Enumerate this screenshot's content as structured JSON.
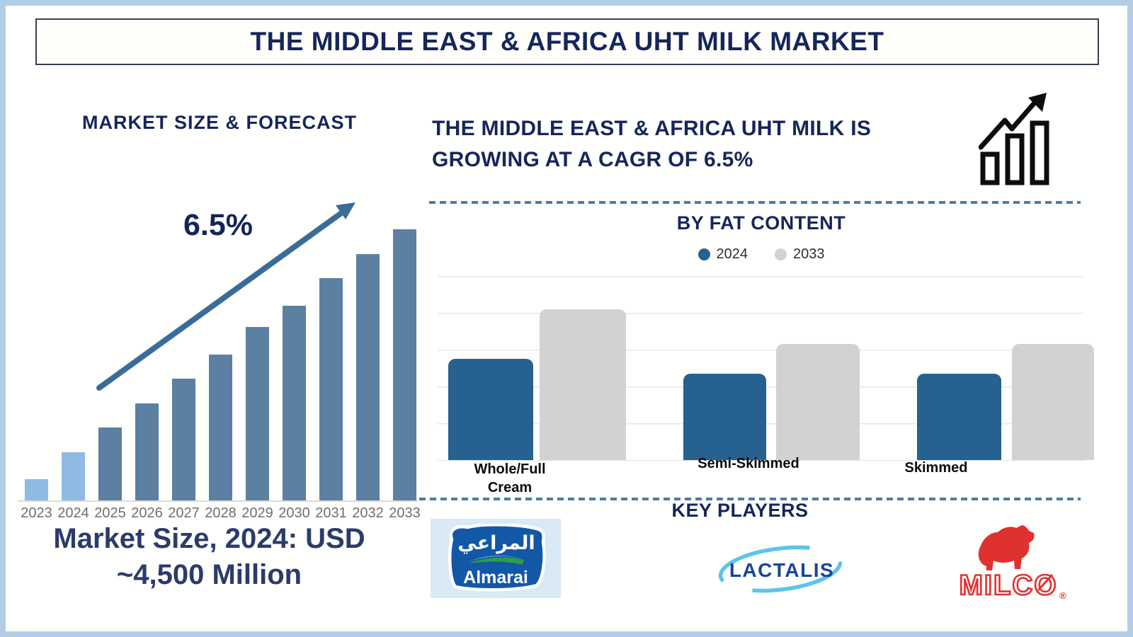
{
  "page": {
    "title": "THE MIDDLE EAST & AFRICA UHT MILK MARKET"
  },
  "left_panel": {
    "section_title": "MARKET SIZE & FORECAST",
    "cagr_annotation": "6.5%",
    "caption_line1": "Market Size, 2024: USD",
    "caption_line2": "~4,500 Million"
  },
  "right_panel": {
    "headline_line1": "THE MIDDLE EAST & AFRICA UHT MILK IS",
    "headline_line2": "GROWING AT A CAGR OF 6.5%",
    "fat_chart_title": "BY FAT CONTENT",
    "key_players_title": "KEY PLAYERS",
    "players": {
      "almarai": {
        "name": "Almarai",
        "arabic": "المراعي"
      },
      "lactalis": {
        "name": "LACTALIS"
      },
      "milco": {
        "name": "MILCO",
        "registered_mark": "®"
      }
    }
  },
  "colors": {
    "frame": "#B2CEE7",
    "navy_text": "#15265B",
    "historical_bar": "#8FBAE1",
    "forecast_bar": "#5B80A1",
    "fat_2024_bar": "#26618F",
    "fat_2033_bar": "#D2D2D2",
    "dashed_divider": "#4C7CA4",
    "arrow": "#3A6C99",
    "milco_red": "#E03131",
    "lactalis_blue": "#17459A",
    "lactalis_cyan": "#5BC5EA",
    "almarai_blue": "#1358A7",
    "almarai_green": "#2F9E45"
  },
  "chart_data": [
    {
      "type": "bar",
      "title": "MARKET SIZE & FORECAST",
      "categories": [
        "2023",
        "2024",
        "2025",
        "2026",
        "2027",
        "2028",
        "2029",
        "2030",
        "2031",
        "2032",
        "2033"
      ],
      "values": [
        8,
        18,
        27,
        36,
        45,
        54,
        64,
        72,
        82,
        91,
        100
      ],
      "value_note": "no value axis shown; values are relative bar heights as % of 2033 bar",
      "annotation": "6.5%",
      "known_value_label": "Market Size, 2024: USD ~4,500 Million",
      "historical_count": 2,
      "historical_color": "#8FBAE1",
      "forecast_color": "#5B80A1",
      "xlabel": "",
      "ylabel": "",
      "grid": false,
      "legend": "none"
    },
    {
      "type": "bar",
      "title": "BY FAT CONTENT",
      "categories": [
        "Whole/Full Cream",
        "Semi-Skimmed",
        "Skimmed"
      ],
      "series": [
        {
          "name": "2024",
          "color": "#26618F",
          "values": [
            2.75,
            2.35,
            2.35
          ]
        },
        {
          "name": "2033",
          "color": "#D2D2D2",
          "values": [
            4.1,
            3.15,
            3.15
          ]
        }
      ],
      "ylim": [
        0,
        5
      ],
      "value_note": "no value axis shown; values estimated in gridline units",
      "grid": true,
      "legend_position": "top",
      "xlabel": "",
      "ylabel": ""
    }
  ]
}
